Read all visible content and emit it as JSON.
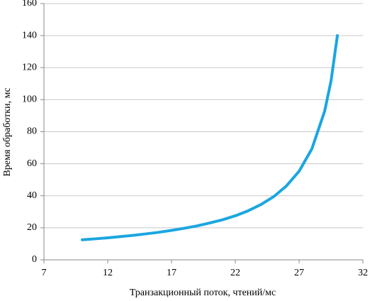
{
  "chart_data": {
    "type": "line",
    "x_label": "Транзакционный поток, чтений/мс",
    "y_label": "Время обработки, мс",
    "x": [
      10,
      11,
      12,
      13,
      14,
      15,
      16,
      17,
      18,
      19,
      20,
      21,
      22,
      23,
      24,
      25,
      26,
      27,
      28,
      29,
      29.5,
      30
    ],
    "series": [
      {
        "color": "#1ba6e0",
        "values": [
          12.5,
          13.1,
          13.75,
          14.5,
          15.3,
          16.2,
          17.2,
          18.4,
          19.7,
          21.2,
          23,
          25,
          27.5,
          30.6,
          34.5,
          39.4,
          46.1,
          55.3,
          69.3,
          92.8,
          111.6,
          140
        ]
      }
    ],
    "xlim": [
      7,
      32
    ],
    "xticks": [
      7,
      12,
      17,
      22,
      27,
      32
    ],
    "ylim": [
      0,
      160
    ],
    "yticks": [
      0,
      20,
      40,
      60,
      80,
      100,
      120,
      140,
      160
    ],
    "grid": true
  }
}
